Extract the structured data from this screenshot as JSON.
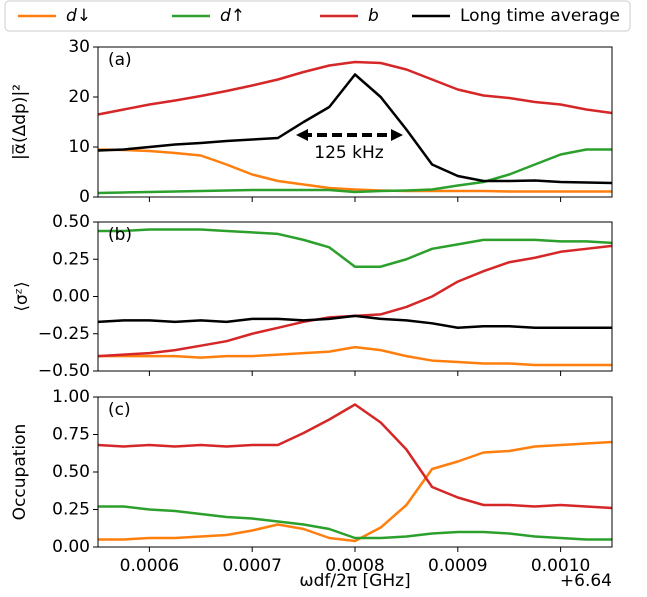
{
  "legend": "upper center",
  "chart_data": [
    {
      "type": "line",
      "panel_label": "(a)",
      "ylabel": "|α̅(Δdp)|²",
      "annotation": "125 kHz",
      "x": [
        0.00055,
        0.000575,
        0.0006,
        0.000625,
        0.00065,
        0.000675,
        0.0007,
        0.000725,
        0.00075,
        0.000775,
        0.0008,
        0.000825,
        0.00085,
        0.000875,
        0.0009,
        0.000925,
        0.00095,
        0.000975,
        0.001,
        0.001025,
        0.00105
      ],
      "xlim": [
        0.00055,
        0.00105
      ],
      "ylim": [
        0,
        30
      ],
      "yticks": [
        0,
        10,
        20,
        30
      ],
      "series": [
        {
          "name": "d↓",
          "color": "#ff7f0e",
          "values": [
            9.5,
            9.4,
            9.2,
            8.8,
            8.3,
            6.5,
            4.5,
            3.2,
            2.5,
            1.8,
            1.5,
            1.3,
            1.2,
            1.2,
            1.2,
            1.2,
            1.1,
            1.1,
            1.1,
            1.1,
            1.1
          ]
        },
        {
          "name": "d↑",
          "color": "#2ca02c",
          "values": [
            0.8,
            0.9,
            1,
            1.1,
            1.2,
            1.3,
            1.4,
            1.4,
            1.4,
            1.4,
            1,
            1.2,
            1.3,
            1.5,
            2.3,
            3,
            4.5,
            6.5,
            8.5,
            9.5,
            9.5
          ]
        },
        {
          "name": "b",
          "color": "#d62728",
          "values": [
            16.5,
            17.5,
            18.5,
            19.3,
            20.2,
            21.2,
            22.3,
            23.5,
            25,
            26.3,
            27,
            26.8,
            25.5,
            23.5,
            21.5,
            20.3,
            19.8,
            19,
            18.5,
            17.5,
            16.8
          ]
        },
        {
          "name": "Long time average",
          "color": "#000000",
          "values": [
            9.3,
            9.5,
            10,
            10.5,
            10.8,
            11.2,
            11.5,
            11.8,
            15,
            18,
            24.5,
            20,
            13.5,
            6.5,
            4.2,
            3.2,
            3.2,
            3.3,
            3,
            2.9,
            2.8
          ]
        }
      ]
    },
    {
      "type": "line",
      "panel_label": "(b)",
      "ylabel": "⟨σᶻ⟩",
      "x": [
        0.00055,
        0.000575,
        0.0006,
        0.000625,
        0.00065,
        0.000675,
        0.0007,
        0.000725,
        0.00075,
        0.000775,
        0.0008,
        0.000825,
        0.00085,
        0.000875,
        0.0009,
        0.000925,
        0.00095,
        0.000975,
        0.001,
        0.001025,
        0.00105
      ],
      "xlim": [
        0.00055,
        0.00105
      ],
      "ylim": [
        -0.5,
        0.5
      ],
      "yticks": [
        {
          "value": -0.5,
          "label": "−0.50"
        },
        {
          "value": -0.25,
          "label": "−0.25"
        },
        {
          "value": 0,
          "label": "0.00"
        },
        {
          "value": 0.25,
          "label": "0.25"
        },
        {
          "value": 0.5,
          "label": "0.50"
        }
      ],
      "series": [
        {
          "color": "#ff7f0e",
          "values": [
            -0.4,
            -0.4,
            -0.4,
            -0.4,
            -0.41,
            -0.4,
            -0.4,
            -0.39,
            -0.38,
            -0.37,
            -0.34,
            -0.36,
            -0.4,
            -0.43,
            -0.44,
            -0.45,
            -0.45,
            -0.46,
            -0.46,
            -0.46,
            -0.46
          ]
        },
        {
          "color": "#2ca02c",
          "values": [
            0.44,
            0.44,
            0.45,
            0.45,
            0.45,
            0.44,
            0.43,
            0.42,
            0.38,
            0.33,
            0.2,
            0.2,
            0.25,
            0.32,
            0.35,
            0.38,
            0.38,
            0.38,
            0.37,
            0.37,
            0.36
          ]
        },
        {
          "color": "#d62728",
          "values": [
            -0.4,
            -0.39,
            -0.38,
            -0.36,
            -0.33,
            -0.3,
            -0.25,
            -0.21,
            -0.17,
            -0.14,
            -0.13,
            -0.12,
            -0.07,
            0,
            0.1,
            0.17,
            0.23,
            0.26,
            0.3,
            0.32,
            0.34
          ]
        },
        {
          "color": "#000000",
          "values": [
            -0.17,
            -0.16,
            -0.16,
            -0.17,
            -0.16,
            -0.17,
            -0.15,
            -0.15,
            -0.16,
            -0.15,
            -0.13,
            -0.15,
            -0.16,
            -0.18,
            -0.21,
            -0.2,
            -0.2,
            -0.21,
            -0.21,
            -0.21,
            -0.21
          ]
        }
      ]
    },
    {
      "type": "line",
      "panel_label": "(c)",
      "ylabel": "Occupation",
      "xlabel": "ωdf/2π [GHz]",
      "x_offset": "+6.64",
      "x": [
        0.00055,
        0.000575,
        0.0006,
        0.000625,
        0.00065,
        0.000675,
        0.0007,
        0.000725,
        0.00075,
        0.000775,
        0.0008,
        0.000825,
        0.00085,
        0.000875,
        0.0009,
        0.000925,
        0.00095,
        0.000975,
        0.001,
        0.001025,
        0.00105
      ],
      "xlim": [
        0.00055,
        0.00105
      ],
      "xticks": [
        0.0006,
        0.0007,
        0.0008,
        0.0009,
        {
          "value": 0.001,
          "label": "0.0010"
        }
      ],
      "ylim": [
        0,
        1
      ],
      "yticks": [
        {
          "value": 0,
          "label": "0.00"
        },
        {
          "value": 0.25,
          "label": "0.25"
        },
        {
          "value": 0.5,
          "label": "0.50"
        },
        {
          "value": 0.75,
          "label": "0.75"
        },
        {
          "value": 1,
          "label": "1.00"
        }
      ],
      "series": [
        {
          "color": "#ff7f0e",
          "values": [
            0.05,
            0.05,
            0.06,
            0.06,
            0.07,
            0.08,
            0.11,
            0.15,
            0.12,
            0.06,
            0.04,
            0.13,
            0.28,
            0.52,
            0.57,
            0.63,
            0.64,
            0.67,
            0.68,
            0.69,
            0.7
          ]
        },
        {
          "color": "#2ca02c",
          "values": [
            0.27,
            0.27,
            0.25,
            0.24,
            0.22,
            0.2,
            0.19,
            0.17,
            0.15,
            0.12,
            0.06,
            0.06,
            0.07,
            0.09,
            0.1,
            0.1,
            0.09,
            0.07,
            0.06,
            0.05,
            0.05
          ]
        },
        {
          "color": "#d62728",
          "values": [
            0.68,
            0.67,
            0.68,
            0.67,
            0.68,
            0.67,
            0.68,
            0.68,
            0.76,
            0.85,
            0.95,
            0.83,
            0.65,
            0.4,
            0.33,
            0.28,
            0.28,
            0.27,
            0.28,
            0.27,
            0.26
          ]
        }
      ]
    }
  ]
}
